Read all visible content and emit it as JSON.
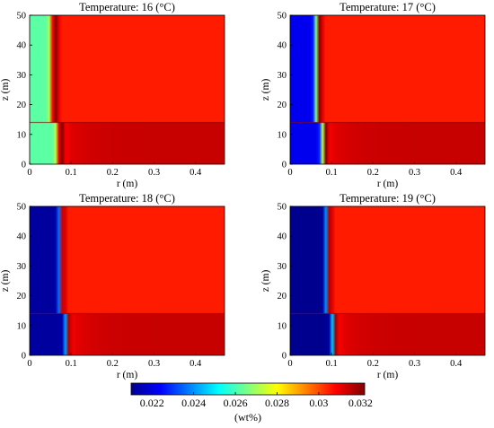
{
  "figure": {
    "colormap": [
      "#00008f",
      "#0000ff",
      "#0080ff",
      "#00ffff",
      "#80ff80",
      "#ffff00",
      "#ff8000",
      "#ff0000",
      "#800000"
    ],
    "colorbar": {
      "range": [
        0.021,
        0.0322
      ],
      "ticks": [
        "0.022",
        "0.024",
        "0.026",
        "0.028",
        "0.03",
        "0.032"
      ],
      "tick_values": [
        0.022,
        0.024,
        0.026,
        0.028,
        0.03,
        0.032
      ],
      "label": "(wt%)"
    }
  },
  "chart_data": [
    {
      "type": "heatmap",
      "title": "Temperature: 16 (°C)",
      "xlabel": "r (m)",
      "ylabel": "z (m)",
      "xlim": [
        0,
        0.47
      ],
      "ylim": [
        0,
        50
      ],
      "xticks": [
        "0",
        "0.1",
        "0.2",
        "0.3",
        "0.4"
      ],
      "yticks": [
        "0",
        "10",
        "20",
        "30",
        "40",
        "50"
      ],
      "interface_z": 14,
      "front_r_upper": 0.055,
      "front_r_lower": 0.07,
      "front_width": 0.01,
      "near_axis_value": 0.0262,
      "far_field_value": 0.0305,
      "lower_zone_value": 0.0313
    },
    {
      "type": "heatmap",
      "title": "Temperature: 17 (°C)",
      "xlabel": "r (m)",
      "ylabel": "z (m)",
      "xlim": [
        0,
        0.47
      ],
      "ylim": [
        0,
        50
      ],
      "xticks": [
        "0",
        "0.1",
        "0.2",
        "0.3",
        "0.4"
      ],
      "yticks": [
        "0",
        "10",
        "20",
        "30",
        "40",
        "50"
      ],
      "interface_z": 14,
      "front_r_upper": 0.065,
      "front_r_lower": 0.08,
      "front_width": 0.009,
      "near_axis_value": 0.0222,
      "far_field_value": 0.0305,
      "lower_zone_value": 0.0313
    },
    {
      "type": "heatmap",
      "title": "Temperature: 18 (°C)",
      "xlabel": "r (m)",
      "ylabel": "z (m)",
      "xlim": [
        0,
        0.47
      ],
      "ylim": [
        0,
        50
      ],
      "xticks": [
        "0",
        "0.1",
        "0.2",
        "0.3",
        "0.4"
      ],
      "yticks": [
        "0",
        "10",
        "20",
        "30",
        "40",
        "50"
      ],
      "interface_z": 14,
      "front_r_upper": 0.075,
      "front_r_lower": 0.09,
      "front_width": 0.008,
      "near_axis_value": 0.0212,
      "far_field_value": 0.0305,
      "lower_zone_value": 0.0313
    },
    {
      "type": "heatmap",
      "title": "Temperature: 19 (°C)",
      "xlabel": "r (m)",
      "ylabel": "z (m)",
      "xlim": [
        0,
        0.47
      ],
      "ylim": [
        0,
        50
      ],
      "xticks": [
        "0",
        "0.1",
        "0.2",
        "0.3",
        "0.4"
      ],
      "yticks": [
        "0",
        "10",
        "20",
        "30",
        "40",
        "50"
      ],
      "interface_z": 14,
      "front_r_upper": 0.09,
      "front_r_lower": 0.105,
      "front_width": 0.008,
      "near_axis_value": 0.021,
      "far_field_value": 0.0305,
      "lower_zone_value": 0.0313
    }
  ]
}
